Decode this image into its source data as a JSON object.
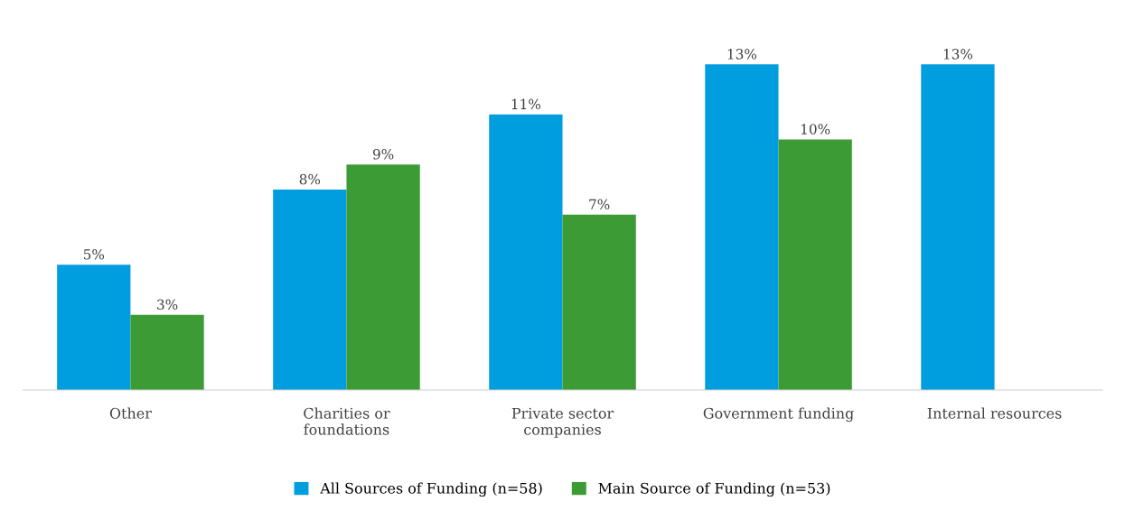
{
  "chart_data": {
    "type": "bar",
    "categories": [
      "Other",
      "Charities or\nfoundations",
      "Private sector\ncompanies",
      "Government funding",
      "Internal resources"
    ],
    "series": [
      {
        "name": "All Sources of Funding (n=58)",
        "color": "#009ddf",
        "values": [
          5,
          8,
          11,
          13,
          13
        ],
        "value_labels": [
          "5%",
          "8%",
          "11%",
          "13%",
          "13%"
        ]
      },
      {
        "name": "Main Source of Funding (n=53)",
        "color": "#3d9b35",
        "values": [
          3,
          9,
          7,
          10,
          null
        ],
        "value_labels": [
          "3%",
          "9%",
          "7%",
          "10%",
          null
        ]
      }
    ],
    "tick_labels": "x",
    "grid": false,
    "legend": "bottom"
  }
}
